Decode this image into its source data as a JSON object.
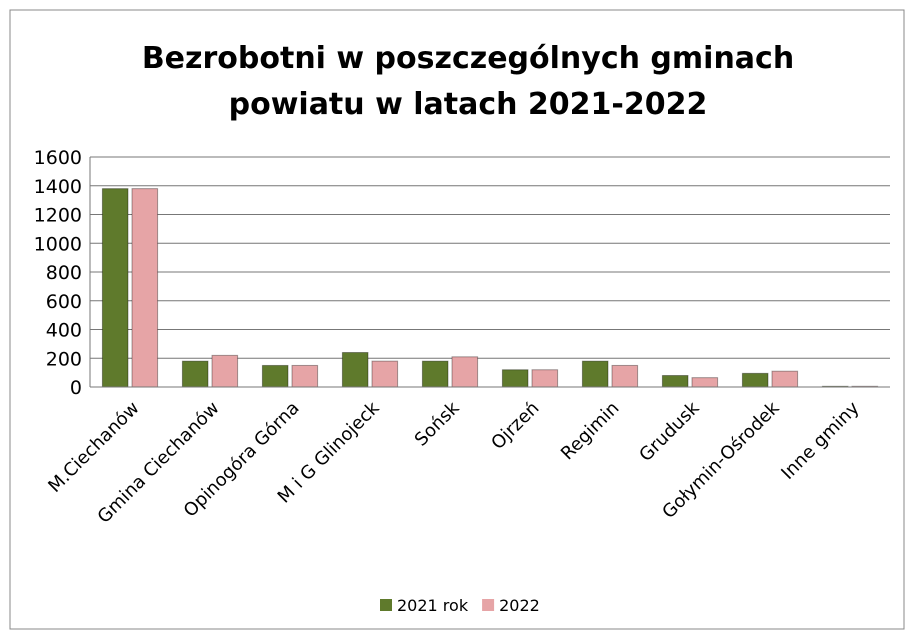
{
  "chart_data": {
    "type": "bar",
    "title": [
      "Bezrobotni w poszczególnych gminach",
      "powiatu w latach 2021-2022"
    ],
    "categories": [
      "M.Ciechanów",
      "Gmina Ciechanów",
      "Opinogóra Górna",
      "M  i G Glinojeck",
      "Sońsk",
      "Ojrzeń",
      "Regimin",
      "Grudusk",
      "Gołymin-Ośrodek",
      "Inne gminy"
    ],
    "series": [
      {
        "name": "2021 rok",
        "color": "#5f7a2c",
        "values": [
          1380,
          180,
          150,
          240,
          180,
          120,
          180,
          80,
          95,
          5
        ]
      },
      {
        "name": "2022",
        "color": "#e6a4a6",
        "values": [
          1380,
          220,
          150,
          180,
          210,
          120,
          150,
          65,
          110,
          5
        ]
      }
    ],
    "ylim": [
      0,
      1600
    ],
    "yticks": [
      0,
      200,
      400,
      600,
      800,
      1000,
      1200,
      1400,
      1600
    ],
    "grid": true,
    "legend": "bottom"
  }
}
